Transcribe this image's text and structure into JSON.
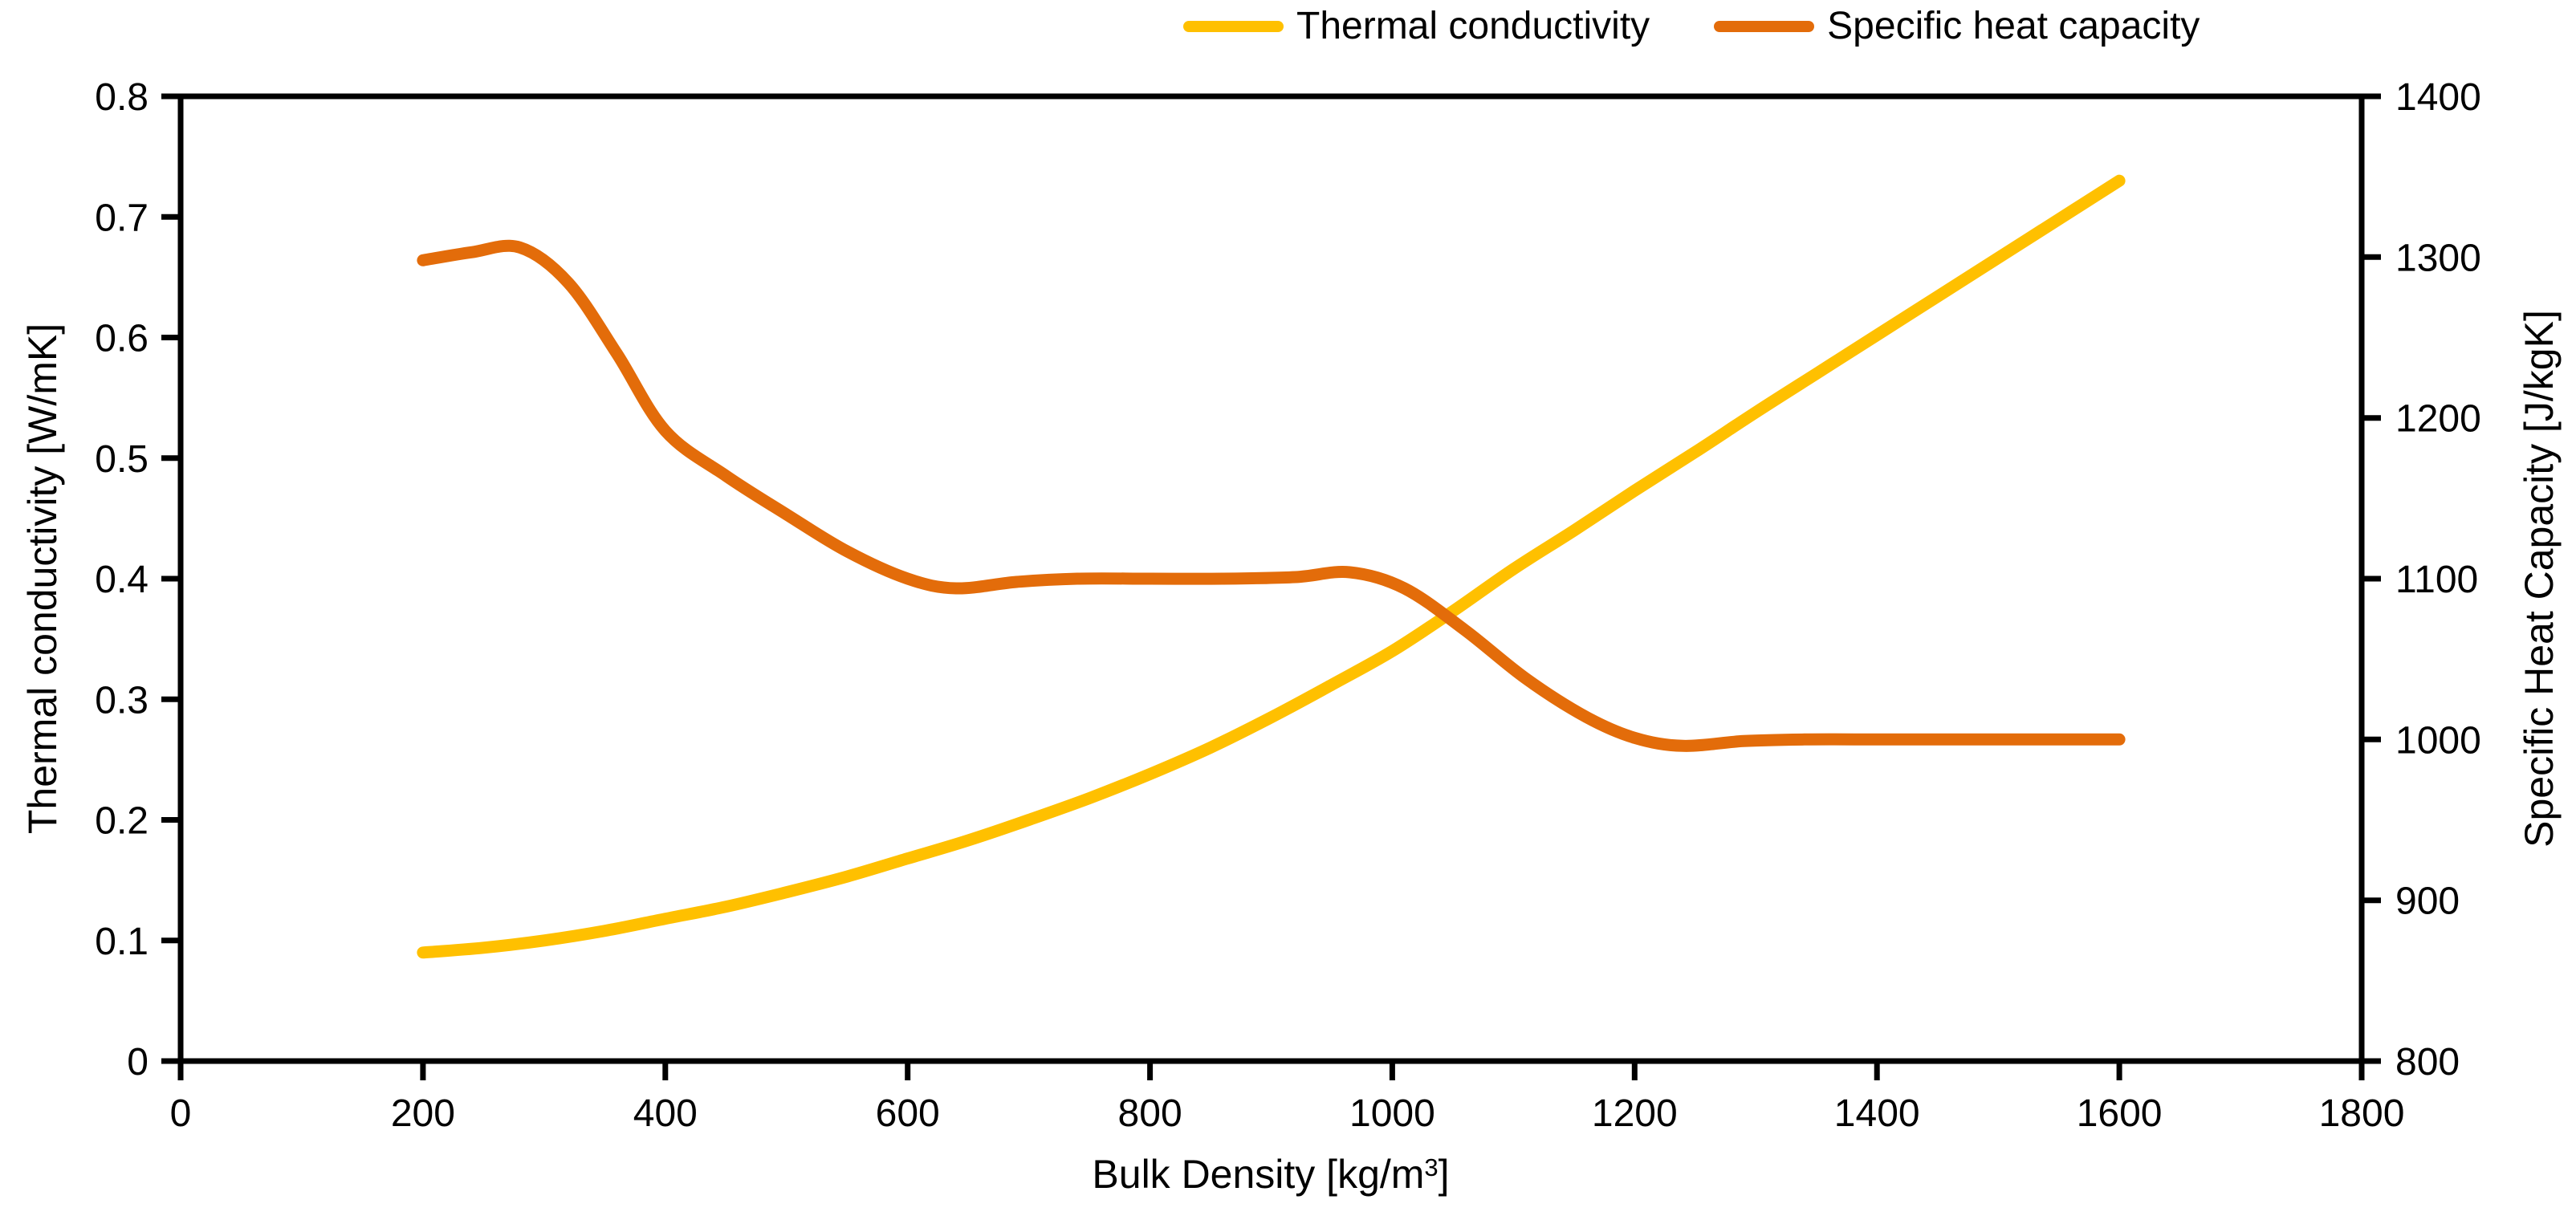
{
  "chart_data": {
    "type": "line",
    "title": "",
    "background": "#ffffff",
    "axis_color": "#000000",
    "x_axis": {
      "title_prefix": "Bulk Density [kg/m",
      "title_sup": "3",
      "title_suffix": "]",
      "min": 0,
      "max": 1800,
      "tick_values": [
        0,
        200,
        400,
        600,
        800,
        1000,
        1200,
        1400,
        1600,
        1800
      ],
      "tick_labels": [
        "0",
        "200",
        "400",
        "600",
        "800",
        "1000",
        "1200",
        "1400",
        "1600",
        "1800"
      ]
    },
    "y_left": {
      "title": "Thermal conductivity [W/mK]",
      "min": 0,
      "max": 0.8,
      "tick_values": [
        0,
        0.1,
        0.2,
        0.3,
        0.4,
        0.5,
        0.6,
        0.7,
        0.8
      ],
      "tick_labels": [
        "0",
        "0.1",
        "0.2",
        "0.3",
        "0.4",
        "0.5",
        "0.6",
        "0.7",
        "0.8"
      ]
    },
    "y_right": {
      "title": "Specific Heat Capacity [J/kgK]",
      "min": 800,
      "max": 1400,
      "tick_values": [
        800,
        900,
        1000,
        1100,
        1200,
        1300,
        1400
      ],
      "tick_labels": [
        "800",
        "900",
        "1000",
        "1100",
        "1200",
        "1300",
        "1400"
      ]
    },
    "legend": {
      "position": "top",
      "items": [
        {
          "label": "Thermal conductivity",
          "color": "#FFC000"
        },
        {
          "label": "Specific heat capacity",
          "color": "#E36C0A"
        }
      ]
    },
    "series": [
      {
        "name": "Thermal conductivity",
        "axis": "left",
        "color": "#FFC000",
        "x_range": [
          200,
          1600
        ],
        "points": [
          [
            200,
            0.09
          ],
          [
            250,
            0.094
          ],
          [
            300,
            0.1
          ],
          [
            350,
            0.108
          ],
          [
            400,
            0.118
          ],
          [
            450,
            0.128
          ],
          [
            500,
            0.14
          ],
          [
            550,
            0.153
          ],
          [
            600,
            0.168
          ],
          [
            650,
            0.183
          ],
          [
            700,
            0.2
          ],
          [
            750,
            0.218
          ],
          [
            800,
            0.238
          ],
          [
            850,
            0.26
          ],
          [
            900,
            0.285
          ],
          [
            950,
            0.312
          ],
          [
            1000,
            0.34
          ],
          [
            1050,
            0.373
          ],
          [
            1100,
            0.408
          ],
          [
            1150,
            0.44
          ],
          [
            1200,
            0.473
          ],
          [
            1250,
            0.505
          ],
          [
            1300,
            0.538
          ],
          [
            1350,
            0.57
          ],
          [
            1400,
            0.602
          ],
          [
            1450,
            0.634
          ],
          [
            1500,
            0.666
          ],
          [
            1550,
            0.698
          ],
          [
            1600,
            0.73
          ]
        ]
      },
      {
        "name": "Specific heat capacity",
        "axis": "right",
        "color": "#E36C0A",
        "x_range": [
          200,
          1600
        ],
        "points": [
          [
            200,
            1298
          ],
          [
            240,
            1303
          ],
          [
            280,
            1306
          ],
          [
            320,
            1284
          ],
          [
            360,
            1240
          ],
          [
            400,
            1192
          ],
          [
            450,
            1164
          ],
          [
            500,
            1140
          ],
          [
            550,
            1117
          ],
          [
            600,
            1100
          ],
          [
            640,
            1094
          ],
          [
            690,
            1098
          ],
          [
            740,
            1100
          ],
          [
            800,
            1100
          ],
          [
            860,
            1100
          ],
          [
            920,
            1101
          ],
          [
            965,
            1104
          ],
          [
            1010,
            1094
          ],
          [
            1060,
            1068
          ],
          [
            1110,
            1038
          ],
          [
            1160,
            1014
          ],
          [
            1200,
            1001
          ],
          [
            1240,
            996
          ],
          [
            1290,
            999
          ],
          [
            1340,
            1000
          ],
          [
            1400,
            1000
          ],
          [
            1450,
            1000
          ],
          [
            1500,
            1000
          ],
          [
            1550,
            1000
          ],
          [
            1600,
            1000
          ]
        ]
      }
    ]
  }
}
